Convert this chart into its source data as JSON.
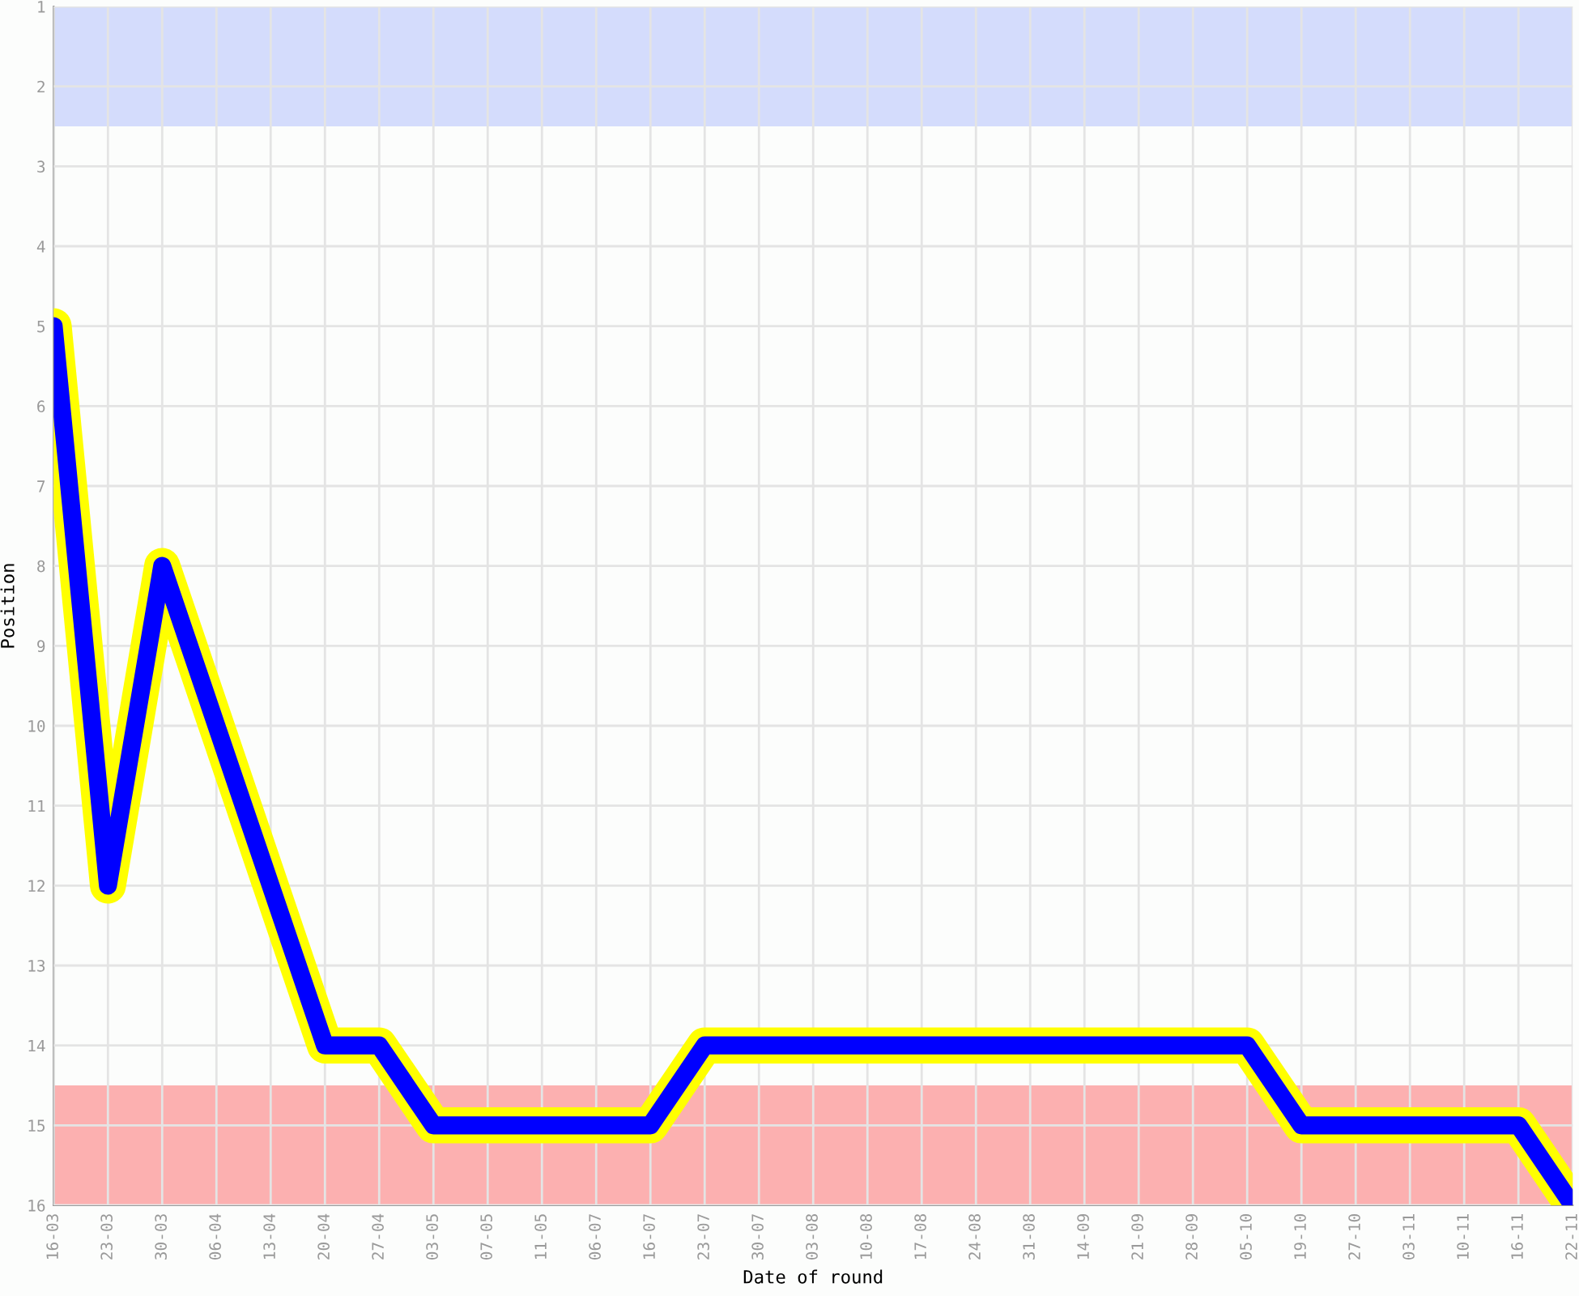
{
  "chart_data": {
    "type": "line",
    "xlabel": "Date of round",
    "ylabel": "Position",
    "categories": [
      "16-03",
      "23-03",
      "30-03",
      "06-04",
      "13-04",
      "20-04",
      "27-04",
      "03-05",
      "07-05",
      "11-05",
      "06-07",
      "16-07",
      "23-07",
      "30-07",
      "03-08",
      "10-08",
      "17-08",
      "24-08",
      "31-08",
      "14-09",
      "21-09",
      "28-09",
      "05-10",
      "19-10",
      "27-10",
      "03-11",
      "10-11",
      "16-11",
      "22-11"
    ],
    "series": [
      {
        "color": "#0000ff",
        "values": [
          5,
          12,
          8,
          10,
          12,
          14,
          14,
          15,
          15,
          15,
          15,
          15,
          14,
          14,
          14,
          14,
          14,
          14,
          14,
          14,
          14,
          14,
          14,
          15,
          15,
          15,
          15,
          15,
          16
        ]
      }
    ],
    "ylim": [
      16,
      1
    ],
    "yticks": [
      1,
      2,
      3,
      4,
      5,
      6,
      7,
      8,
      9,
      10,
      11,
      12,
      13,
      14,
      15,
      16
    ],
    "bands": [
      {
        "axis": "y",
        "from": 1,
        "to": 2.5,
        "color": "#d4dcfc"
      },
      {
        "axis": "y",
        "from": 14.5,
        "to": 16,
        "color": "#fcb0b0"
      }
    ],
    "grid": true,
    "marker": "none",
    "line_style": "solid"
  }
}
